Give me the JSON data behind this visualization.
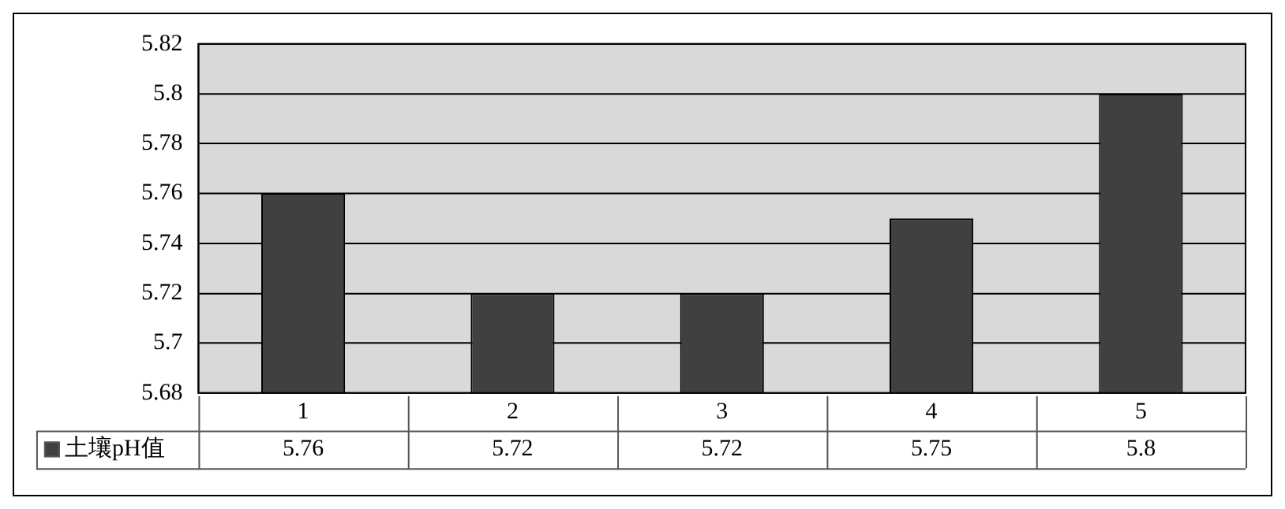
{
  "chart_data": {
    "type": "bar",
    "categories": [
      "1",
      "2",
      "3",
      "4",
      "5"
    ],
    "series": [
      {
        "name": "土壤pH值",
        "color": "#404040",
        "values": [
          5.76,
          5.72,
          5.72,
          5.75,
          5.8
        ]
      }
    ],
    "ylim": [
      5.68,
      5.82
    ],
    "yticks": [
      5.68,
      5.7,
      5.72,
      5.74,
      5.76,
      5.78,
      5.8,
      5.82
    ],
    "grid": "y",
    "legend": "bottom left",
    "data_labels": true
  }
}
